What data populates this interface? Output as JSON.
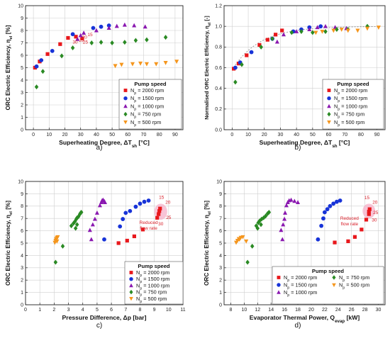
{
  "colors": {
    "np2000": "#e8181c",
    "np1500": "#1733d8",
    "np1000": "#8a18b0",
    "np750": "#2a8a24",
    "np500": "#f5961d",
    "highlight": "#f6b0c8"
  },
  "legend": {
    "title": "Pump speed",
    "entries": [
      {
        "key": "np2000",
        "symbol": "square",
        "label": "N",
        "sub": "p",
        "rest": " = 2000 rpm"
      },
      {
        "key": "np1500",
        "symbol": "circle",
        "label": "N",
        "sub": "p",
        "rest": " = 1500 rpm"
      },
      {
        "key": "np1000",
        "symbol": "triangle-up",
        "label": "N",
        "sub": "p",
        "rest": " = 1000 rpm"
      },
      {
        "key": "np750",
        "symbol": "diamond",
        "label": "N",
        "sub": "p",
        "rest": " = 750 rpm"
      },
      {
        "key": "np500",
        "symbol": "triangle-down",
        "label": "N",
        "sub": "p",
        "rest": " = 500 rpm"
      }
    ]
  },
  "chart_data": [
    {
      "id": "a",
      "type": "scatter",
      "panel_label": "a)",
      "xlabel": "Superheating Degree, ΔT",
      "xlabel_sub": "sh",
      "xlabel_tail": " [°C]",
      "ylabel": "ORC Electric Efficiency, η",
      "ylabel_sub": "el",
      "ylabel_tail": " [%]",
      "xlim": [
        -5,
        95
      ],
      "ylim": [
        0,
        10
      ],
      "xticks": [
        0,
        10,
        20,
        30,
        40,
        50,
        60,
        70,
        80,
        90
      ],
      "yticks": [
        0,
        1,
        2,
        3,
        4,
        5,
        6,
        7,
        8,
        9,
        10
      ],
      "ytick_decimals": 0,
      "legend_position": "bottom-right",
      "annotations": [
        {
          "text": "15",
          "x": 36,
          "y": 7.55
        },
        {
          "text": "20",
          "x": 32.5,
          "y": 7.35
        },
        {
          "text": "25",
          "x": 30.5,
          "y": 7.1
        },
        {
          "text": "30",
          "x": 26.5,
          "y": 6.95
        },
        {
          "text": "25",
          "x": 33,
          "y": 6.95
        }
      ],
      "series": [
        {
          "key": "np2000",
          "points": [
            [
              1,
              5.0
            ],
            [
              4,
              5.5
            ],
            [
              9,
              6.1
            ],
            [
              17,
              6.9
            ],
            [
              22,
              7.4
            ],
            [
              27,
              7.5
            ],
            [
              31,
              7.35
            ]
          ]
        },
        {
          "key": "np1500",
          "points": [
            [
              2,
              5.1
            ],
            [
              5,
              5.6
            ],
            [
              12,
              6.35
            ],
            [
              25,
              7.7
            ],
            [
              38,
              8.2
            ],
            [
              43,
              8.3
            ],
            [
              48,
              8.4
            ]
          ]
        },
        {
          "key": "np1000",
          "points": [
            [
              28,
              7.3
            ],
            [
              30,
              7.6
            ],
            [
              32,
              7.8
            ],
            [
              40,
              8.0
            ],
            [
              48,
              8.2
            ],
            [
              53,
              8.35
            ],
            [
              58,
              8.45
            ],
            [
              64,
              8.4
            ],
            [
              71,
              8.3
            ]
          ]
        },
        {
          "key": "np750",
          "points": [
            [
              2,
              3.45
            ],
            [
              6,
              4.7
            ],
            [
              18,
              5.95
            ],
            [
              25,
              6.6
            ],
            [
              37,
              7.0
            ],
            [
              43,
              7.05
            ],
            [
              50,
              7.0
            ],
            [
              58,
              7.05
            ],
            [
              65,
              7.2
            ],
            [
              72,
              7.25
            ],
            [
              84,
              7.45
            ]
          ]
        },
        {
          "key": "np500",
          "points": [
            [
              52,
              5.15
            ],
            [
              56,
              5.25
            ],
            [
              63,
              5.3
            ],
            [
              68,
              5.35
            ],
            [
              72,
              5.3
            ],
            [
              78,
              5.3
            ],
            [
              84,
              5.4
            ],
            [
              91,
              5.5
            ]
          ]
        }
      ]
    },
    {
      "id": "b",
      "type": "scatter",
      "panel_label": "b)",
      "xlabel": "Superheating Degree, ΔT",
      "xlabel_sub": "sh",
      "xlabel_tail": " [°C]",
      "ylabel": "Normalised ORC Electric Efficiency, η",
      "ylabel_sub": "el",
      "ylabel_tail": " [-]",
      "xlim": [
        -5,
        95
      ],
      "ylim": [
        0.0,
        1.2
      ],
      "xticks": [
        0,
        10,
        20,
        30,
        40,
        50,
        60,
        70,
        80,
        90
      ],
      "yticks": [
        0.0,
        0.2,
        0.4,
        0.6,
        0.8,
        1.0,
        1.2
      ],
      "ytick_decimals": 1,
      "legend_position": "bottom-right",
      "trend": true,
      "series": [
        {
          "key": "np2000",
          "points": [
            [
              1,
              0.59
            ],
            [
              4,
              0.64
            ],
            [
              9,
              0.72
            ],
            [
              17,
              0.82
            ],
            [
              22,
              0.87
            ],
            [
              27,
              0.92
            ],
            [
              31,
              0.96
            ]
          ]
        },
        {
          "key": "np1500",
          "points": [
            [
              2,
              0.6
            ],
            [
              5,
              0.65
            ],
            [
              12,
              0.75
            ],
            [
              25,
              0.88
            ],
            [
              38,
              0.95
            ],
            [
              43,
              0.97
            ],
            [
              48,
              0.99
            ],
            [
              55,
              1.0
            ]
          ]
        },
        {
          "key": "np1000",
          "points": [
            [
              28,
              0.85
            ],
            [
              32,
              0.92
            ],
            [
              40,
              0.95
            ],
            [
              48,
              0.97
            ],
            [
              53,
              0.99
            ],
            [
              58,
              1.0
            ],
            [
              64,
              0.99
            ],
            [
              71,
              0.98
            ]
          ]
        },
        {
          "key": "np750",
          "points": [
            [
              2,
              0.46
            ],
            [
              6,
              0.63
            ],
            [
              18,
              0.8
            ],
            [
              25,
              0.88
            ],
            [
              37,
              0.94
            ],
            [
              43,
              0.95
            ],
            [
              50,
              0.94
            ],
            [
              58,
              0.95
            ],
            [
              65,
              0.97
            ],
            [
              72,
              0.97
            ],
            [
              84,
              1.0
            ]
          ]
        },
        {
          "key": "np500",
          "points": [
            [
              52,
              0.94
            ],
            [
              56,
              0.95
            ],
            [
              63,
              0.96
            ],
            [
              68,
              0.97
            ],
            [
              72,
              0.96
            ],
            [
              78,
              0.96
            ],
            [
              84,
              0.98
            ],
            [
              91,
              0.99
            ]
          ]
        }
      ]
    },
    {
      "id": "c",
      "type": "scatter",
      "panel_label": "c)",
      "xlabel": "Pressure Difference, Δp",
      "xlabel_sub": "",
      "xlabel_tail": " [bar]",
      "ylabel": "ORC Electric Efficiency, η",
      "ylabel_sub": "el",
      "ylabel_tail": " [%]",
      "xlim": [
        0,
        11
      ],
      "ylim": [
        0,
        10
      ],
      "xticks": [
        0,
        1,
        2,
        3,
        4,
        5,
        6,
        7,
        8,
        9,
        10,
        11
      ],
      "yticks": [
        0,
        1,
        2,
        3,
        4,
        5,
        6,
        7,
        8,
        9,
        10
      ],
      "ytick_decimals": 0,
      "legend_position": "bottom-right",
      "highlight": {
        "cx": 9.45,
        "cy": 7.55,
        "rx": 0.45,
        "ry": 0.65
      },
      "note": {
        "lines": [
          "Reduced",
          "flow rate"
        ],
        "x": 8.6,
        "y": 6.55
      },
      "annotations": [
        {
          "text": "15",
          "x": 9.5,
          "y": 8.6
        },
        {
          "text": "20",
          "x": 9.95,
          "y": 8.2
        },
        {
          "text": "25",
          "x": 10.0,
          "y": 6.95
        },
        {
          "text": "30",
          "x": 9.45,
          "y": 6.45
        }
      ],
      "series": [
        {
          "key": "np2000",
          "points": [
            [
              6.5,
              5.0
            ],
            [
              7.1,
              5.2
            ],
            [
              7.6,
              5.55
            ],
            [
              8.2,
              6.1
            ],
            [
              9.2,
              7.05
            ],
            [
              9.3,
              7.35
            ],
            [
              9.35,
              7.6
            ],
            [
              9.4,
              7.8
            ]
          ]
        },
        {
          "key": "np1500",
          "points": [
            [
              6.6,
              6.35
            ],
            [
              6.8,
              6.95
            ],
            [
              7.0,
              7.45
            ],
            [
              7.3,
              7.6
            ],
            [
              7.7,
              7.95
            ],
            [
              8.0,
              8.2
            ],
            [
              8.3,
              8.35
            ],
            [
              8.6,
              8.45
            ],
            [
              5.5,
              5.3
            ]
          ]
        },
        {
          "key": "np1000",
          "points": [
            [
              4.5,
              6.05
            ],
            [
              4.7,
              6.5
            ],
            [
              4.85,
              6.95
            ],
            [
              5.0,
              7.45
            ],
            [
              5.2,
              8.05
            ],
            [
              5.3,
              8.3
            ],
            [
              5.35,
              8.45
            ],
            [
              5.42,
              8.5
            ],
            [
              5.5,
              8.4
            ],
            [
              5.55,
              8.3
            ],
            [
              4.6,
              5.3
            ]
          ]
        },
        {
          "key": "np750",
          "points": [
            [
              2.1,
              3.45
            ],
            [
              2.6,
              4.75
            ],
            [
              3.2,
              6.4
            ],
            [
              3.35,
              6.6
            ],
            [
              3.45,
              6.75
            ],
            [
              3.55,
              6.95
            ],
            [
              3.6,
              7.05
            ],
            [
              3.7,
              7.15
            ],
            [
              3.8,
              7.35
            ],
            [
              3.85,
              7.45
            ],
            [
              3.9,
              7.5
            ],
            [
              3.5,
              6.2
            ],
            [
              3.6,
              6.5
            ]
          ]
        },
        {
          "key": "np500",
          "points": [
            [
              2.05,
              5.05
            ],
            [
              2.1,
              5.2
            ],
            [
              2.15,
              5.35
            ],
            [
              2.2,
              5.45
            ],
            [
              2.25,
              5.5
            ],
            [
              2.15,
              5.3
            ],
            [
              2.2,
              5.15
            ]
          ]
        }
      ]
    },
    {
      "id": "d",
      "type": "scatter",
      "panel_label": "d)",
      "xlabel": "Evaporator Thermal Power, Q",
      "xlabel_sub": "evap",
      "xlabel_tail": " [kW]",
      "ylabel": "ORC Electric Efficiency, η",
      "ylabel_sub": "el",
      "ylabel_tail": " [%]",
      "xlim": [
        7,
        31
      ],
      "ylim": [
        0,
        10
      ],
      "xticks": [
        8,
        10,
        12,
        14,
        16,
        18,
        20,
        22,
        24,
        26,
        28,
        30
      ],
      "yticks": [
        0,
        1,
        2,
        3,
        4,
        5,
        6,
        7,
        8,
        9,
        10
      ],
      "ytick_decimals": 0,
      "legend_position": "bottom-right",
      "legend_columns": 2,
      "highlight": {
        "cx": 28.6,
        "cy": 7.6,
        "rx": 0.95,
        "ry": 0.6
      },
      "note": {
        "lines": [
          "Reduced",
          "flow rate"
        ],
        "x": 25.7,
        "y": 6.9
      },
      "annotations": [
        {
          "text": "15",
          "x": 28.3,
          "y": 8.55
        },
        {
          "text": "20",
          "x": 29.5,
          "y": 8.2
        },
        {
          "text": "25",
          "x": 29.6,
          "y": 7.35
        },
        {
          "text": "30",
          "x": 29.4,
          "y": 6.75
        }
      ],
      "series": [
        {
          "key": "np2000",
          "points": [
            [
              23.5,
              5.05
            ],
            [
              25.5,
              5.15
            ],
            [
              26.5,
              5.5
            ],
            [
              27.5,
              6.1
            ],
            [
              28.2,
              6.9
            ],
            [
              28.6,
              7.35
            ],
            [
              28.6,
              7.55
            ],
            [
              28.7,
              7.75
            ]
          ]
        },
        {
          "key": "np1500",
          "points": [
            [
              21.5,
              6.4
            ],
            [
              21.8,
              7.0
            ],
            [
              22.0,
              7.5
            ],
            [
              22.4,
              7.75
            ],
            [
              22.8,
              8.0
            ],
            [
              23.3,
              8.2
            ],
            [
              23.8,
              8.35
            ],
            [
              24.3,
              8.45
            ],
            [
              21.0,
              5.3
            ]
          ]
        },
        {
          "key": "np1000",
          "points": [
            [
              15.5,
              6.05
            ],
            [
              15.8,
              6.5
            ],
            [
              16.0,
              6.95
            ],
            [
              16.1,
              7.45
            ],
            [
              16.3,
              8.05
            ],
            [
              16.5,
              8.3
            ],
            [
              16.7,
              8.45
            ],
            [
              17.0,
              8.5
            ],
            [
              17.5,
              8.4
            ],
            [
              18.0,
              8.3
            ],
            [
              15.7,
              5.3
            ]
          ]
        },
        {
          "key": "np750",
          "points": [
            [
              10.5,
              3.45
            ],
            [
              11.2,
              4.75
            ],
            [
              11.8,
              6.4
            ],
            [
              12.1,
              6.65
            ],
            [
              12.3,
              6.8
            ],
            [
              12.6,
              6.95
            ],
            [
              12.9,
              7.05
            ],
            [
              13.2,
              7.2
            ],
            [
              13.5,
              7.4
            ],
            [
              13.7,
              7.5
            ],
            [
              12.0,
              6.2
            ],
            [
              12.5,
              6.5
            ]
          ]
        },
        {
          "key": "np500",
          "points": [
            [
              8.8,
              5.05
            ],
            [
              9.0,
              5.2
            ],
            [
              9.2,
              5.35
            ],
            [
              9.5,
              5.45
            ],
            [
              9.8,
              5.5
            ],
            [
              10.3,
              5.15
            ],
            [
              9.3,
              5.3
            ]
          ]
        }
      ]
    }
  ]
}
